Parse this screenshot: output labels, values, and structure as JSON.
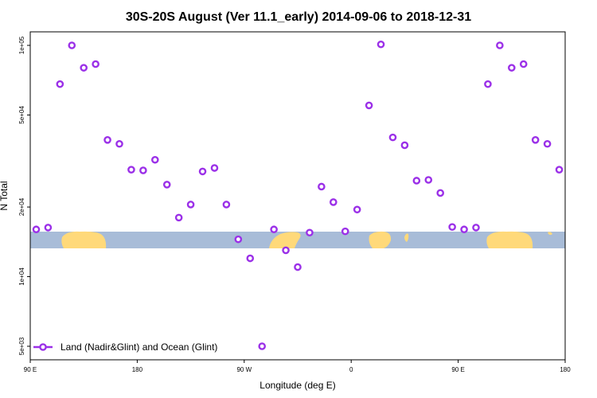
{
  "chart_data": {
    "type": "scatter",
    "title": "30S-20S August (Ver 11.1_early)   2014-09-06 to 2018-12-31",
    "xlabel": "Longitude (deg E)",
    "ylabel": "N Total",
    "xlim": [
      90,
      540
    ],
    "ylim": [
      5000,
      100000
    ],
    "y_scale": "log",
    "grid": false,
    "legend_position": "bottom-left",
    "x_ticks": [
      {
        "value": 90,
        "label": "90 E"
      },
      {
        "value": 180,
        "label": "180"
      },
      {
        "value": 270,
        "label": "90 W"
      },
      {
        "value": 360,
        "label": "0"
      },
      {
        "value": 450,
        "label": "90 E"
      },
      {
        "value": 540,
        "label": "180"
      }
    ],
    "y_ticks": [
      {
        "value": 5000,
        "label": "5e+03"
      },
      {
        "value": 10000,
        "label": "1e+04"
      },
      {
        "value": 20000,
        "label": "2e+04"
      },
      {
        "value": 50000,
        "label": "5e+04"
      },
      {
        "value": 100000,
        "label": "1e+05"
      }
    ],
    "series": [
      {
        "name": "Land (Nadir&Glint) and Ocean (Glint)",
        "color": "#9b30e8",
        "marker": "open-circle",
        "x": [
          95,
          105,
          115,
          125,
          135,
          145,
          155,
          165,
          175,
          185,
          195,
          205,
          215,
          225,
          235,
          245,
          255,
          265,
          275,
          285,
          295,
          305,
          315,
          325,
          335,
          345,
          355,
          365,
          375,
          385,
          395,
          405,
          415,
          425,
          435,
          445,
          455,
          465,
          475,
          485,
          495,
          505,
          515,
          525,
          535
        ],
        "y": [
          16000,
          16300,
          68000,
          100000,
          80000,
          83000,
          39000,
          37500,
          29000,
          28800,
          32000,
          25000,
          18000,
          20500,
          28500,
          29500,
          20500,
          14500,
          12000,
          5000,
          16000,
          13000,
          11000,
          15500,
          24500,
          21000,
          15700,
          19500,
          55000,
          101000,
          40000,
          37000,
          26000,
          26200,
          23000,
          16400,
          16000,
          16300,
          68000,
          100000,
          80000,
          83000,
          39000,
          37500,
          29000
        ]
      }
    ]
  }
}
